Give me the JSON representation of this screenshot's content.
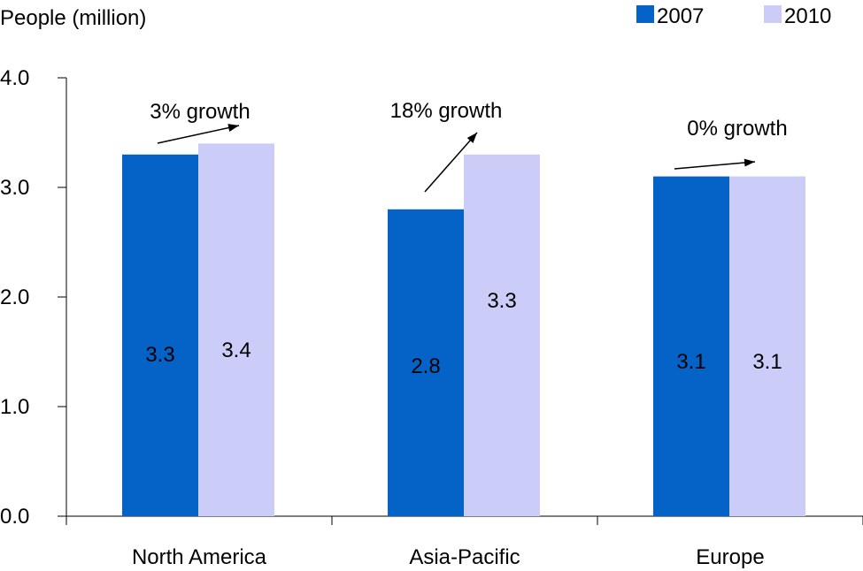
{
  "chart_data": {
    "type": "bar",
    "ylabel": "People (million)",
    "categories": [
      "North America",
      "Asia-Pacific",
      "Europe"
    ],
    "series": [
      {
        "name": "2007",
        "values": [
          3.3,
          2.8,
          3.1
        ],
        "color": "#0563C8"
      },
      {
        "name": "2010",
        "values": [
          3.4,
          3.3,
          3.1
        ],
        "color": "#CCCCF8"
      }
    ],
    "ylim": [
      0,
      4
    ],
    "yticks": [
      "0.0",
      "1.0",
      "2.0",
      "3.0",
      "4.0"
    ],
    "data_labels": {
      "2007": [
        "3.3",
        "2.8",
        "3.1"
      ],
      "2010": [
        "3.4",
        "3.3",
        "3.1"
      ]
    },
    "annotations": [
      "3% growth",
      "18% growth",
      "0% growth"
    ],
    "legend": "top-right",
    "grid": false
  }
}
